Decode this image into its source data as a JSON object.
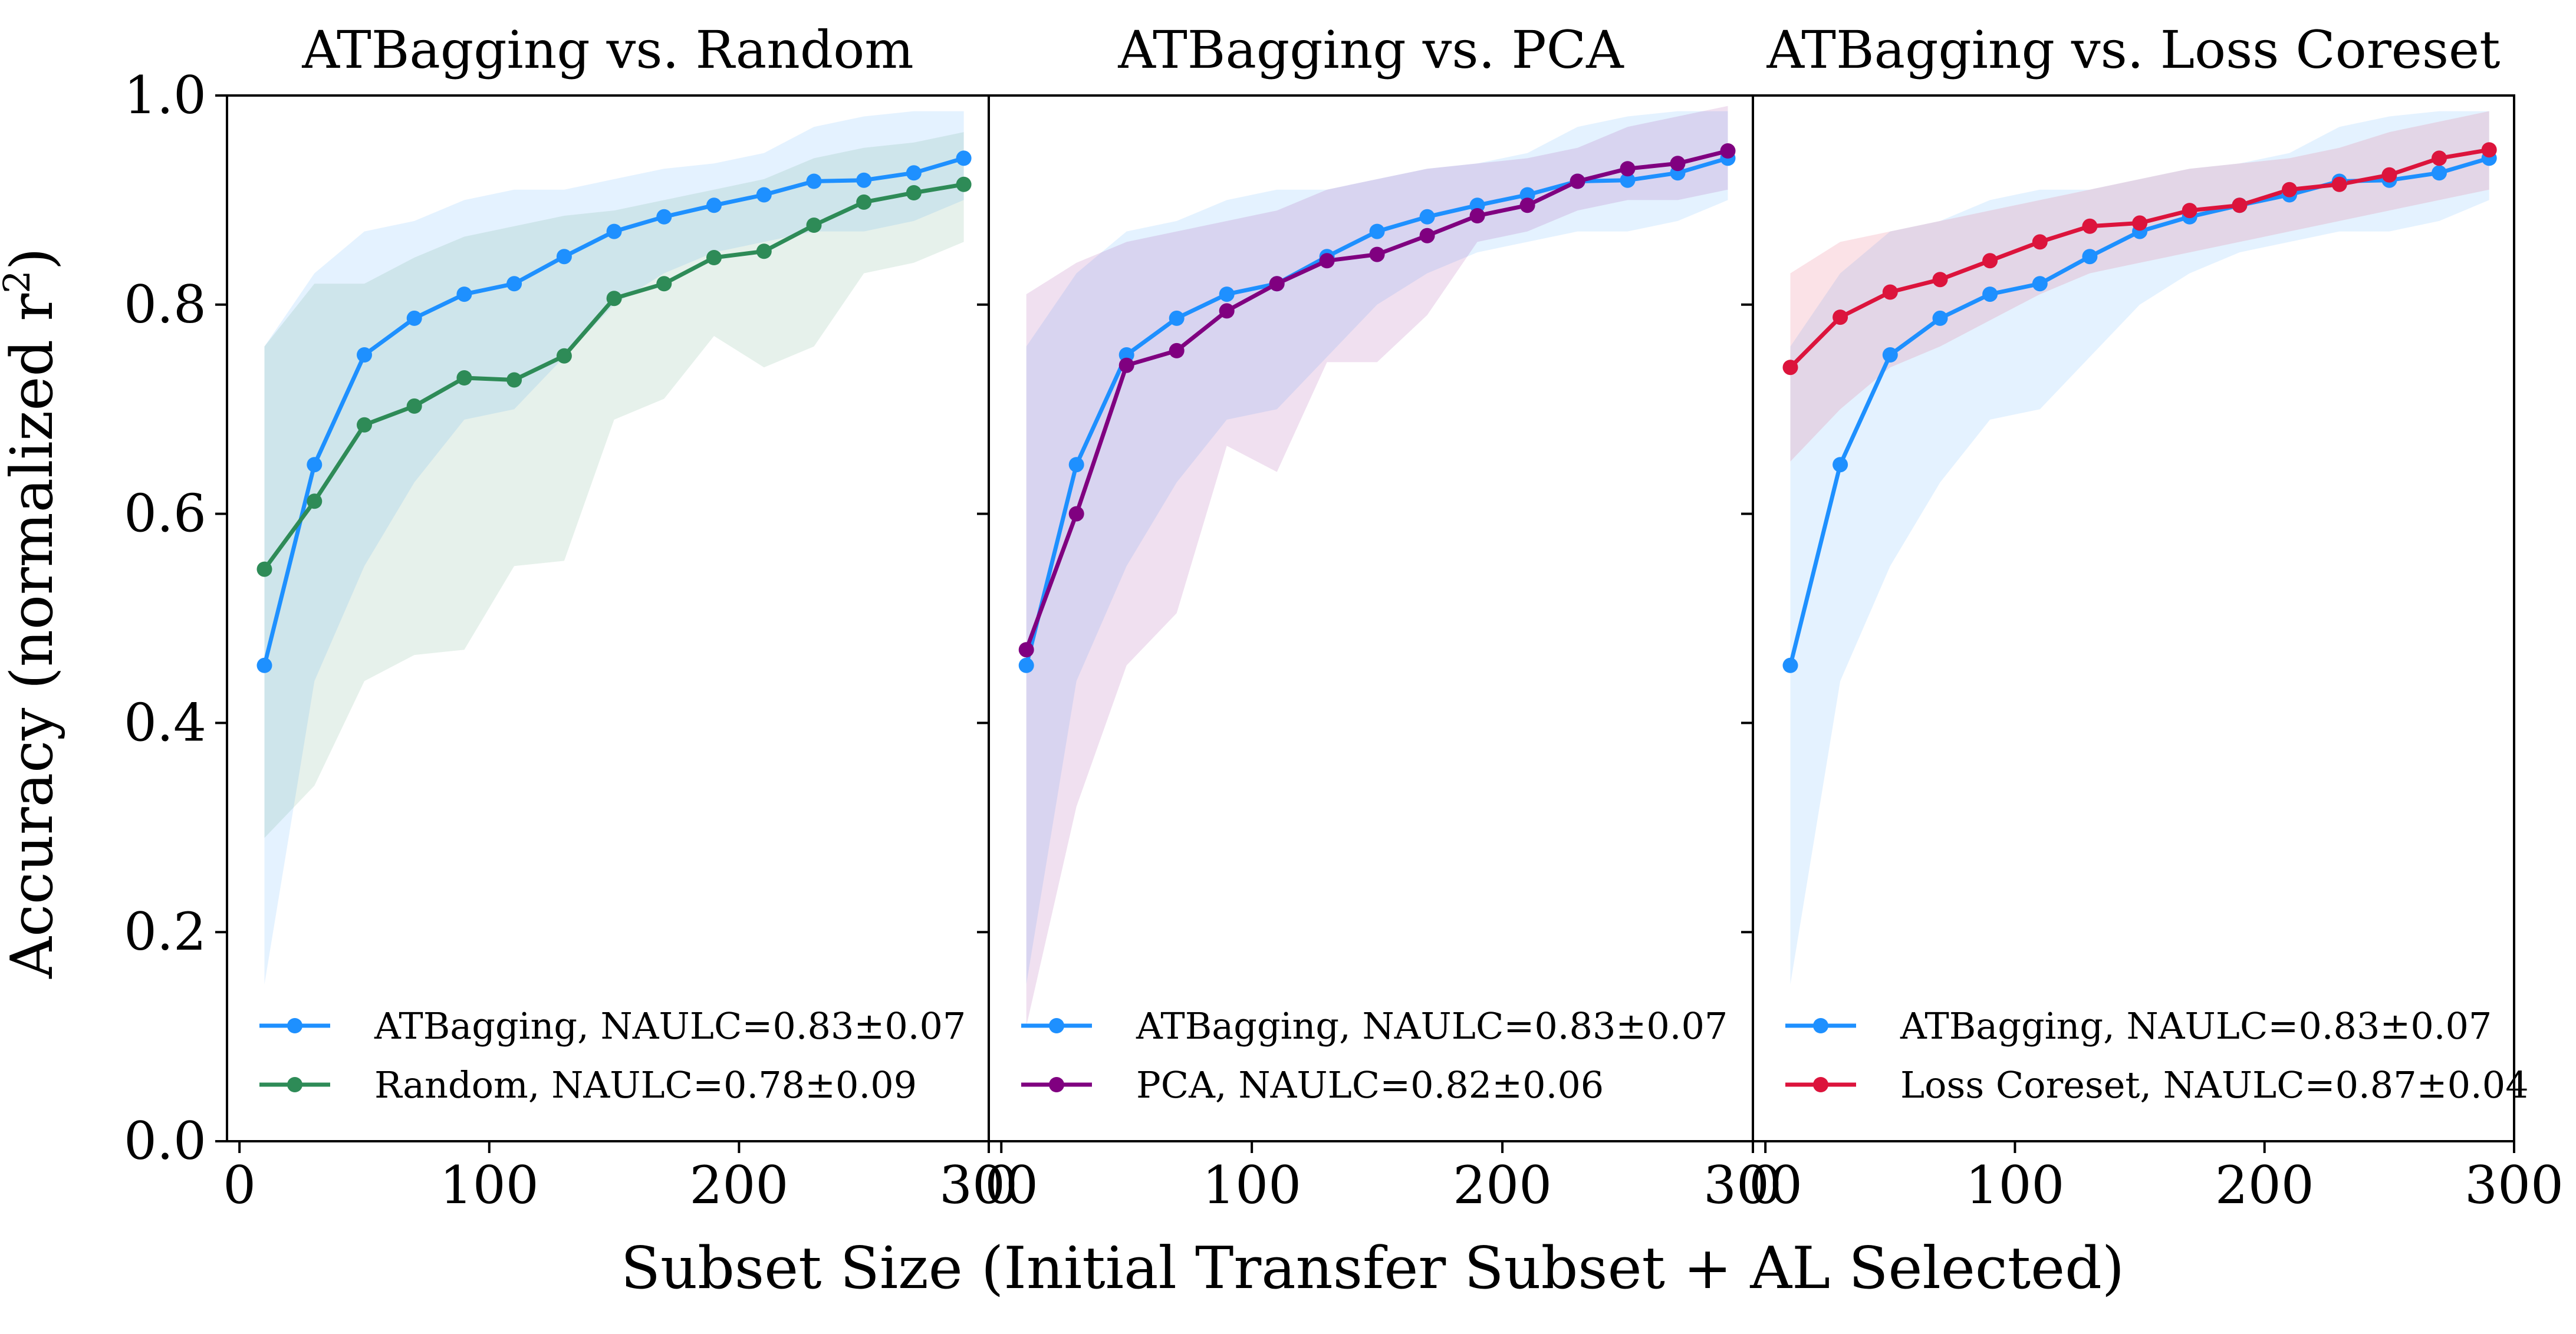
{
  "figure": {
    "ylabel": "Accuracy (normalized r",
    "ylabel_sup": "2",
    "ylabel_close": ")",
    "xlabel": "Subset Size (Initial Transfer Subset + AL Selected)",
    "yticks": [
      "0.0",
      "0.2",
      "0.4",
      "0.6",
      "0.8",
      "1.0"
    ],
    "xticks": [
      "0",
      "100",
      "200",
      "300"
    ]
  },
  "colors": {
    "atbagging": "#1E90FF",
    "random": "#2E8B57",
    "pca": "#800080",
    "loss_coreset": "#DC143C"
  },
  "chart_data": [
    {
      "type": "line",
      "title": "ATBagging vs. Random",
      "xlabel": "Subset Size (Initial Transfer Subset + AL Selected)",
      "ylabel": "Accuracy (normalized r^2)",
      "xlim": [
        -5,
        300
      ],
      "ylim": [
        0,
        1.0
      ],
      "legend_position": "lower-left",
      "x": [
        10,
        30,
        50,
        70,
        90,
        110,
        130,
        150,
        170,
        190,
        210,
        230,
        250,
        270,
        290
      ],
      "series": [
        {
          "name": "ATBagging",
          "legend": "ATBagging, NAULC=0.83±0.07",
          "color": "#1E90FF",
          "values": [
            0.455,
            0.647,
            0.752,
            0.787,
            0.81,
            0.82,
            0.846,
            0.87,
            0.884,
            0.895,
            0.905,
            0.918,
            0.919,
            0.926,
            0.94
          ],
          "band_upper": [
            0.76,
            0.83,
            0.87,
            0.88,
            0.9,
            0.91,
            0.91,
            0.92,
            0.93,
            0.935,
            0.945,
            0.97,
            0.98,
            0.985,
            0.985
          ],
          "band_lower": [
            0.15,
            0.44,
            0.55,
            0.63,
            0.69,
            0.7,
            0.75,
            0.8,
            0.83,
            0.85,
            0.86,
            0.87,
            0.87,
            0.88,
            0.9
          ]
        },
        {
          "name": "Random",
          "legend": "Random, NAULC=0.78±0.09",
          "color": "#2E8B57",
          "values": [
            0.547,
            0.612,
            0.685,
            0.703,
            0.73,
            0.728,
            0.751,
            0.806,
            0.82,
            0.845,
            0.851,
            0.876,
            0.898,
            0.907,
            0.915
          ],
          "band_upper": [
            0.76,
            0.82,
            0.82,
            0.845,
            0.865,
            0.875,
            0.885,
            0.89,
            0.9,
            0.91,
            0.92,
            0.94,
            0.95,
            0.955,
            0.965
          ],
          "band_lower": [
            0.29,
            0.34,
            0.44,
            0.465,
            0.47,
            0.55,
            0.555,
            0.69,
            0.71,
            0.77,
            0.74,
            0.76,
            0.83,
            0.84,
            0.86
          ]
        }
      ]
    },
    {
      "type": "line",
      "title": "ATBagging vs. PCA",
      "xlabel": "Subset Size (Initial Transfer Subset + AL Selected)",
      "ylabel": "Accuracy (normalized r^2)",
      "xlim": [
        -5,
        300
      ],
      "ylim": [
        0,
        1.0
      ],
      "legend_position": "lower-left",
      "x": [
        10,
        30,
        50,
        70,
        90,
        110,
        130,
        150,
        170,
        190,
        210,
        230,
        250,
        270,
        290
      ],
      "series": [
        {
          "name": "ATBagging",
          "legend": "ATBagging, NAULC=0.83±0.07",
          "color": "#1E90FF",
          "values": [
            0.455,
            0.647,
            0.752,
            0.787,
            0.81,
            0.82,
            0.846,
            0.87,
            0.884,
            0.895,
            0.905,
            0.918,
            0.919,
            0.926,
            0.94
          ],
          "band_upper": [
            0.76,
            0.83,
            0.87,
            0.88,
            0.9,
            0.91,
            0.91,
            0.92,
            0.93,
            0.935,
            0.945,
            0.97,
            0.98,
            0.985,
            0.985
          ],
          "band_lower": [
            0.15,
            0.44,
            0.55,
            0.63,
            0.69,
            0.7,
            0.75,
            0.8,
            0.83,
            0.85,
            0.86,
            0.87,
            0.87,
            0.88,
            0.9
          ]
        },
        {
          "name": "PCA",
          "legend": "PCA, NAULC=0.82±0.06",
          "color": "#800080",
          "values": [
            0.47,
            0.6,
            0.742,
            0.756,
            0.794,
            0.82,
            0.842,
            0.848,
            0.866,
            0.885,
            0.895,
            0.918,
            0.93,
            0.935,
            0.947
          ],
          "band_upper": [
            0.81,
            0.84,
            0.86,
            0.87,
            0.88,
            0.89,
            0.91,
            0.92,
            0.93,
            0.935,
            0.94,
            0.95,
            0.97,
            0.98,
            0.99
          ],
          "band_lower": [
            0.11,
            0.32,
            0.455,
            0.505,
            0.665,
            0.64,
            0.745,
            0.745,
            0.79,
            0.86,
            0.87,
            0.89,
            0.9,
            0.9,
            0.91
          ]
        }
      ]
    },
    {
      "type": "line",
      "title": "ATBagging vs. Loss Coreset",
      "xlabel": "Subset Size (Initial Transfer Subset + AL Selected)",
      "ylabel": "Accuracy (normalized r^2)",
      "xlim": [
        -5,
        300
      ],
      "ylim": [
        0,
        1.0
      ],
      "legend_position": "lower-left",
      "x": [
        10,
        30,
        50,
        70,
        90,
        110,
        130,
        150,
        170,
        190,
        210,
        230,
        250,
        270,
        290
      ],
      "series": [
        {
          "name": "ATBagging",
          "legend": "ATBagging, NAULC=0.83±0.07",
          "color": "#1E90FF",
          "values": [
            0.455,
            0.647,
            0.752,
            0.787,
            0.81,
            0.82,
            0.846,
            0.87,
            0.884,
            0.895,
            0.905,
            0.918,
            0.919,
            0.926,
            0.94
          ],
          "band_upper": [
            0.76,
            0.83,
            0.87,
            0.88,
            0.9,
            0.91,
            0.91,
            0.92,
            0.93,
            0.935,
            0.945,
            0.97,
            0.98,
            0.985,
            0.985
          ],
          "band_lower": [
            0.15,
            0.44,
            0.55,
            0.63,
            0.69,
            0.7,
            0.75,
            0.8,
            0.83,
            0.85,
            0.86,
            0.87,
            0.87,
            0.88,
            0.9
          ]
        },
        {
          "name": "Loss Coreset",
          "legend": "Loss Coreset, NAULC=0.87±0.04",
          "color": "#DC143C",
          "values": [
            0.74,
            0.788,
            0.812,
            0.824,
            0.842,
            0.86,
            0.875,
            0.878,
            0.89,
            0.895,
            0.91,
            0.915,
            0.924,
            0.94,
            0.948
          ],
          "band_upper": [
            0.83,
            0.86,
            0.87,
            0.88,
            0.89,
            0.9,
            0.91,
            0.92,
            0.93,
            0.935,
            0.94,
            0.95,
            0.965,
            0.975,
            0.985
          ],
          "band_lower": [
            0.65,
            0.7,
            0.74,
            0.76,
            0.785,
            0.81,
            0.83,
            0.84,
            0.85,
            0.86,
            0.87,
            0.88,
            0.89,
            0.9,
            0.91
          ]
        }
      ]
    }
  ]
}
